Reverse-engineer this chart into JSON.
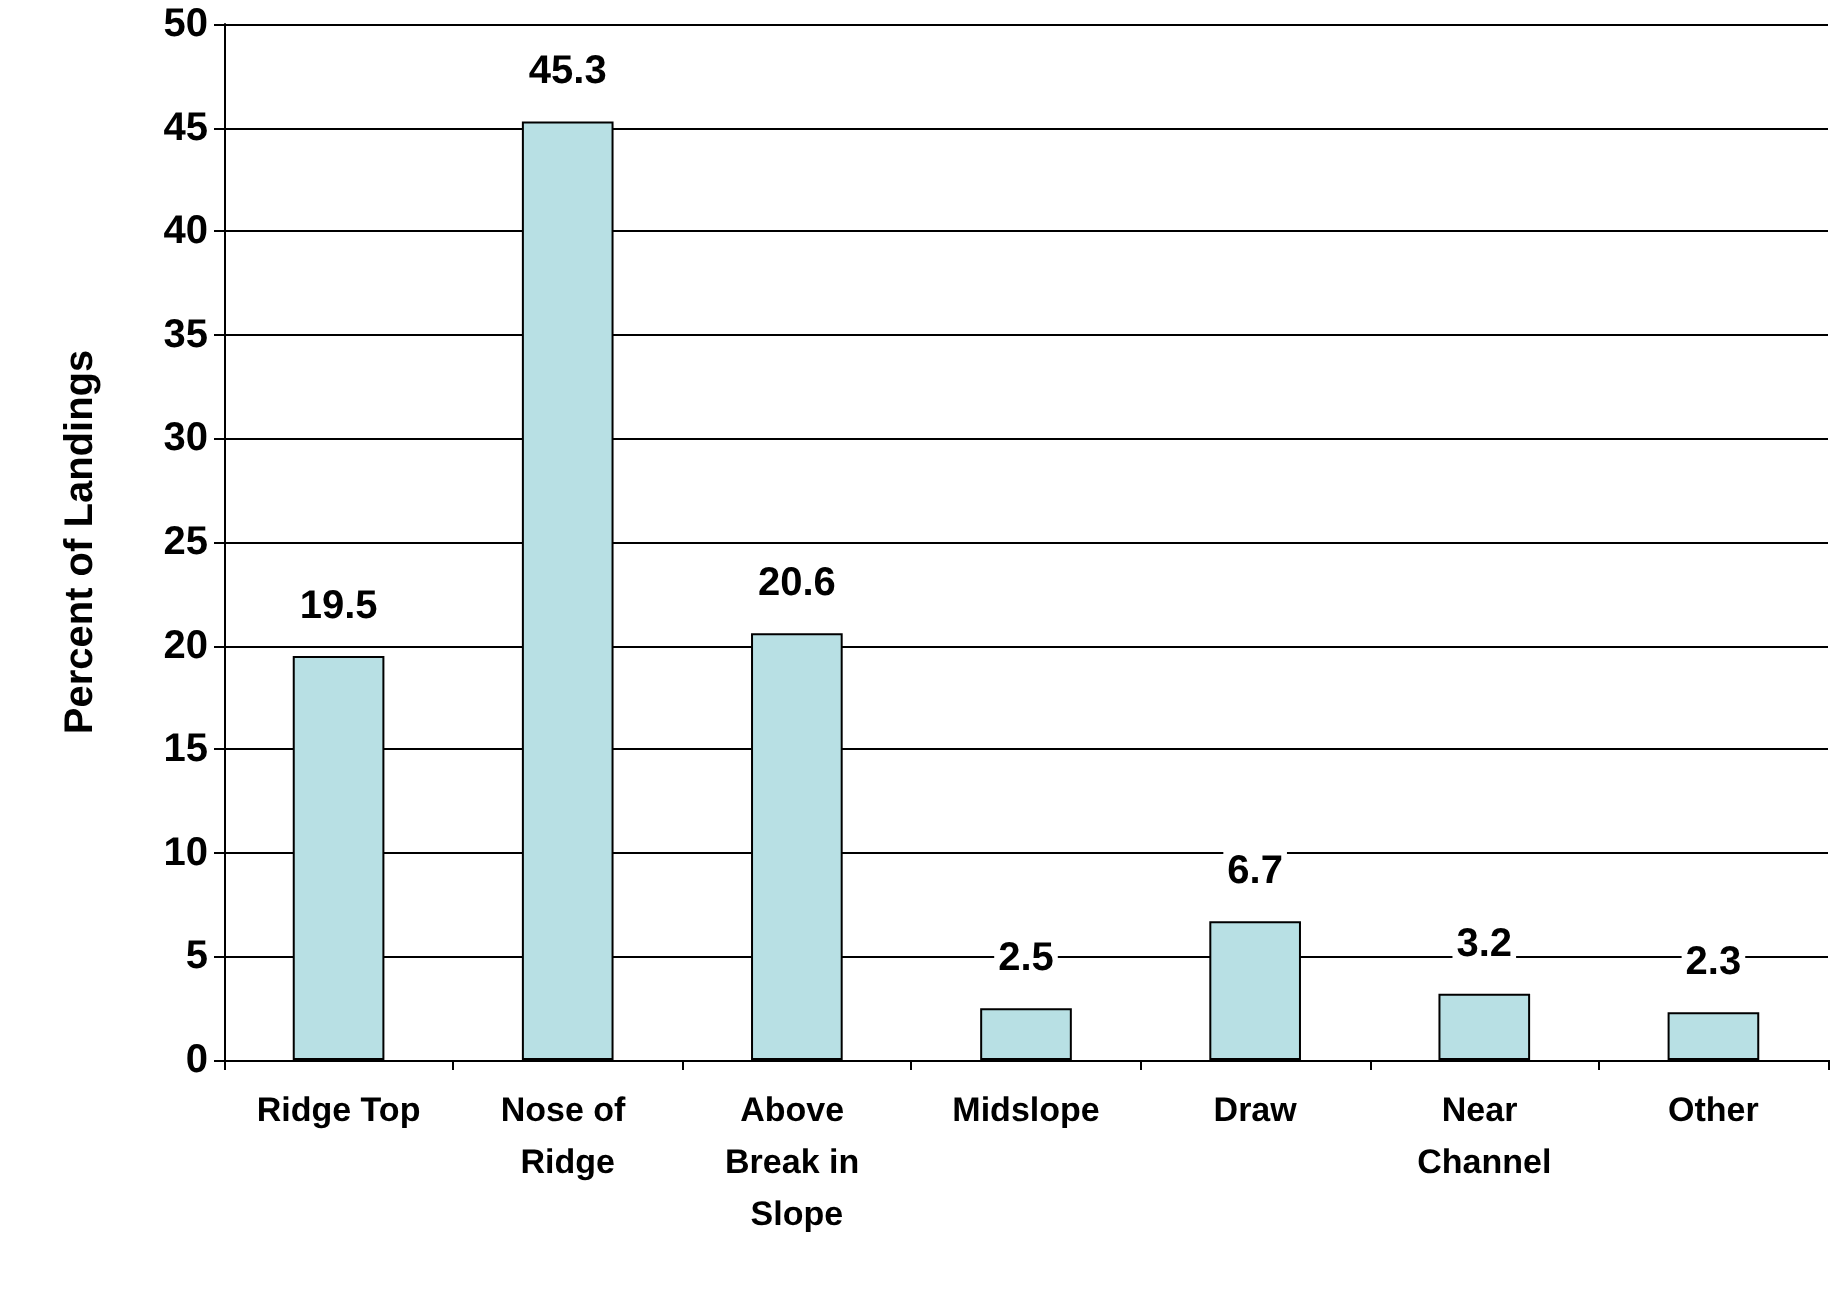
{
  "chart_data": {
    "type": "bar",
    "ylabel": "Percent of Landings",
    "categories": [
      "Ridge Top",
      "Nose of Ridge",
      "Above Break in Slope",
      "Midslope",
      "Draw",
      "Near Channel",
      "Other"
    ],
    "values": [
      19.5,
      45.3,
      20.6,
      2.5,
      6.7,
      3.2,
      2.3
    ],
    "color": "#b8e0e4",
    "ylim": [
      0,
      50
    ],
    "yticks": [
      0,
      5,
      10,
      15,
      20,
      25,
      30,
      35,
      40,
      45,
      50
    ],
    "grid": "y",
    "data_labels": true
  }
}
